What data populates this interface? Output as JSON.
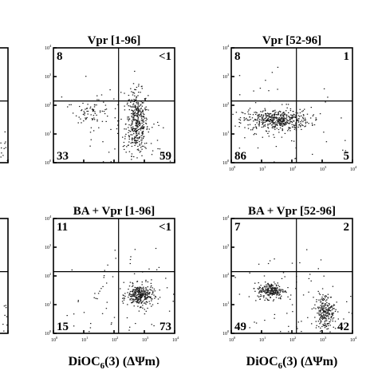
{
  "chart_data": [
    {
      "type": "scatter",
      "title": "",
      "xscale": "log",
      "yscale": "log",
      "xlim": [
        1,
        10000
      ],
      "ylim": [
        1,
        10000
      ],
      "x_ticks": [
        "10",
        "10",
        "10",
        "10",
        "10"
      ],
      "y_ticks": [
        "10",
        "10",
        "10",
        "10",
        "10"
      ],
      "quadrants": [
        "",
        "",
        "",
        ""
      ],
      "clusters": [
        {
          "x": 4000,
          "y": 2.5,
          "spread_x": 0.45,
          "spread_y": 0.45,
          "count": 70
        }
      ]
    },
    {
      "type": "scatter",
      "title": "Vpr [1-96]",
      "xscale": "log",
      "yscale": "log",
      "xlim": [
        1,
        10000
      ],
      "ylim": [
        1,
        10000
      ],
      "x_ticks": [
        "10",
        "10",
        "10",
        "10",
        "10"
      ],
      "y_ticks": [
        "10",
        "10",
        "10",
        "10",
        "10"
      ],
      "y_exponents": [
        "0",
        "1",
        "2",
        "3",
        "4"
      ],
      "quadrants": [
        "8",
        "<1",
        "33",
        "59"
      ],
      "clusters": [
        {
          "x": 550,
          "y": 25,
          "spread_x": 0.18,
          "spread_y": 0.55,
          "count": 380
        },
        {
          "x": 20,
          "y": 60,
          "spread_x": 0.3,
          "spread_y": 0.18,
          "count": 60
        },
        {
          "x": 100,
          "y": 10,
          "spread_x": 1.1,
          "spread_y": 0.9,
          "count": 90
        }
      ]
    },
    {
      "type": "scatter",
      "title": "Vpr [52-96]",
      "xscale": "log",
      "yscale": "log",
      "xlim": [
        1,
        10000
      ],
      "ylim": [
        1,
        10000
      ],
      "x_ticks": [
        "10",
        "10",
        "10",
        "10",
        "10"
      ],
      "y_ticks": [
        "10",
        "10",
        "10",
        "10",
        "10"
      ],
      "x_exponents": [
        "0",
        "1",
        "2",
        "3",
        "4"
      ],
      "y_exponents": [
        "0",
        "1",
        "2",
        "3",
        "4"
      ],
      "quadrants": [
        "8",
        "1",
        "86",
        "5"
      ],
      "clusters": [
        {
          "x": 30,
          "y": 32,
          "spread_x": 0.55,
          "spread_y": 0.18,
          "count": 460
        },
        {
          "x": 60,
          "y": 15,
          "spread_x": 1.1,
          "spread_y": 0.9,
          "count": 70
        }
      ]
    },
    {
      "type": "scatter",
      "title": "",
      "xscale": "log",
      "yscale": "log",
      "xlim": [
        1,
        10000
      ],
      "ylim": [
        1,
        10000
      ],
      "x_ticks": [
        "10",
        "10",
        "10",
        "10",
        "10"
      ],
      "y_ticks": [
        "10",
        "10",
        "10",
        "10",
        "10"
      ],
      "quadrants": [
        "",
        "",
        "",
        ""
      ],
      "clusters": [
        {
          "x": 4000,
          "y": 3,
          "spread_x": 0.45,
          "spread_y": 0.45,
          "count": 60
        }
      ]
    },
    {
      "type": "scatter",
      "title": "BA + Vpr [1-96]",
      "xlabel": "DiOC",
      "xlabel_sub": "6",
      "xlabel_rest": "(3) (ΔΨm)",
      "xscale": "log",
      "yscale": "log",
      "xlim": [
        1,
        10000
      ],
      "ylim": [
        1,
        10000
      ],
      "x_ticks": [
        "10",
        "10",
        "10",
        "10",
        "10"
      ],
      "y_ticks": [
        "10",
        "10",
        "10",
        "10",
        "10"
      ],
      "x_exponents": [
        "0",
        "1",
        "2",
        "3",
        "4"
      ],
      "y_exponents": [
        "0",
        "1",
        "2",
        "3",
        "4"
      ],
      "quadrants": [
        "11",
        "<1",
        "15",
        "73"
      ],
      "clusters": [
        {
          "x": 700,
          "y": 22,
          "spread_x": 0.22,
          "spread_y": 0.18,
          "count": 300
        },
        {
          "x": 80,
          "y": 12,
          "spread_x": 1.1,
          "spread_y": 0.9,
          "count": 90
        }
      ]
    },
    {
      "type": "scatter",
      "title": "BA + Vpr [52-96]",
      "xlabel": "DiOC",
      "xlabel_sub": "6",
      "xlabel_rest": "(3) (ΔΨm)",
      "xscale": "log",
      "yscale": "log",
      "xlim": [
        1,
        10000
      ],
      "ylim": [
        1,
        10000
      ],
      "x_ticks": [
        "10",
        "10",
        "10",
        "10",
        "10"
      ],
      "y_ticks": [
        "10",
        "10",
        "10",
        "10",
        "10"
      ],
      "x_exponents": [
        "0",
        "1",
        "2",
        "3",
        "4"
      ],
      "y_exponents": [
        "0",
        "1",
        "2",
        "3",
        "4"
      ],
      "quadrants": [
        "7",
        "2",
        "49",
        "42"
      ],
      "clusters": [
        {
          "x": 20,
          "y": 32,
          "spread_x": 0.22,
          "spread_y": 0.14,
          "count": 220
        },
        {
          "x": 1200,
          "y": 6,
          "spread_x": 0.16,
          "spread_y": 0.32,
          "count": 230
        },
        {
          "x": 80,
          "y": 12,
          "spread_x": 1.1,
          "spread_y": 0.9,
          "count": 80
        }
      ]
    }
  ]
}
